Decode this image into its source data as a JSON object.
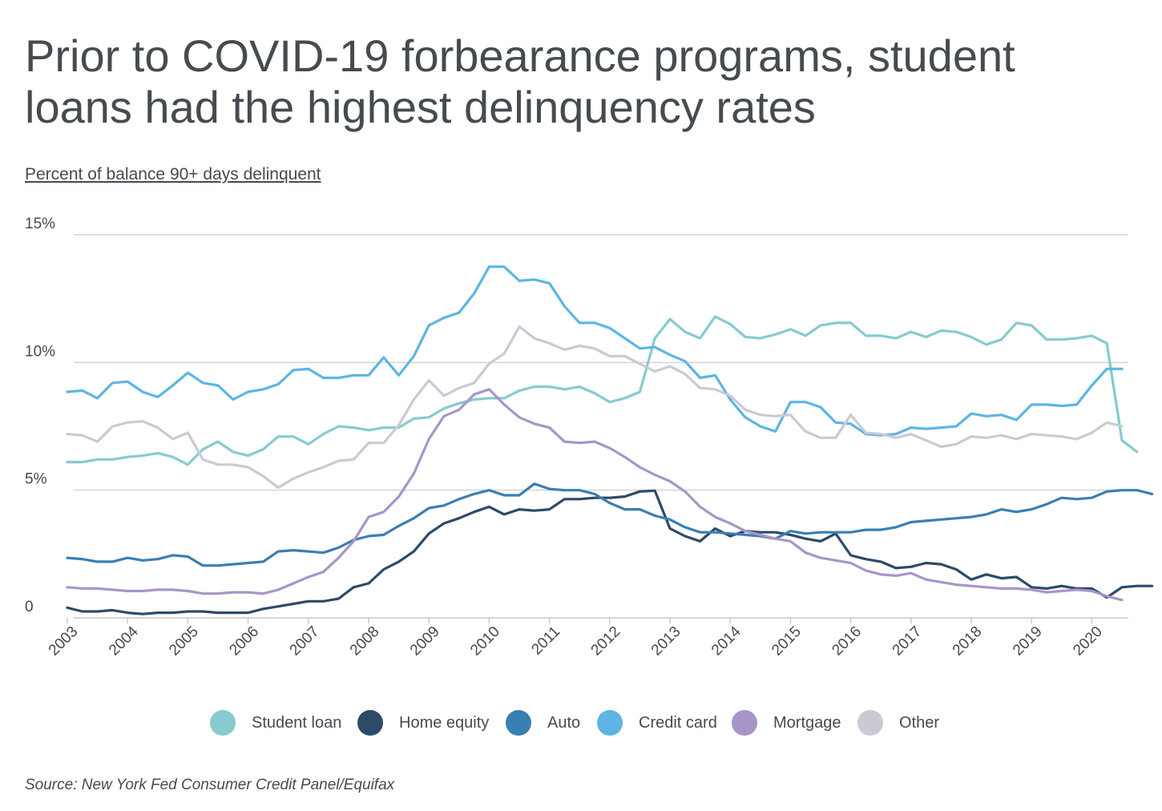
{
  "title": "Prior to COVID-19 forbearance programs, student loans had the highest delinquency rates",
  "subtitle": "Percent of balance 90+ days delinquent",
  "source": "Source: New York Fed Consumer Credit Panel/Equifax",
  "chart_data": {
    "type": "line",
    "ylabel": "Percent of balance 90+ days delinquent",
    "ylim": [
      0,
      15
    ],
    "y_ticks": [
      0,
      5,
      10,
      15
    ],
    "y_tick_labels": [
      "0",
      "5%",
      "10%",
      "15%"
    ],
    "x_range": [
      2003.0,
      2020.5
    ],
    "x_ticks": [
      2003,
      2004,
      2005,
      2006,
      2007,
      2008,
      2009,
      2010,
      2011,
      2012,
      2013,
      2014,
      2015,
      2016,
      2017,
      2018,
      2019,
      2020
    ],
    "x_tick_labels": [
      "2003",
      "2004",
      "2005",
      "2006",
      "2007",
      "2008",
      "2009",
      "2010",
      "2011",
      "2012",
      "2013",
      "2014",
      "2015",
      "2016",
      "2017",
      "2018",
      "2019",
      "2020"
    ],
    "x_step_years": 0.25,
    "grid": "horizontal",
    "legend_position": "bottom",
    "series": [
      {
        "name": "Student loan",
        "color": "#86cbcf",
        "values": [
          6.1,
          6.1,
          6.2,
          6.2,
          6.3,
          6.35,
          6.45,
          6.3,
          6.0,
          6.6,
          6.9,
          6.5,
          6.35,
          6.6,
          7.1,
          7.1,
          6.8,
          7.2,
          7.5,
          7.45,
          7.35,
          7.45,
          7.45,
          7.8,
          7.85,
          8.2,
          8.4,
          8.55,
          8.6,
          8.6,
          8.9,
          9.05,
          9.05,
          8.95,
          9.05,
          8.8,
          8.45,
          8.6,
          8.85,
          10.95,
          11.7,
          11.2,
          10.95,
          11.8,
          11.5,
          11.0,
          10.95,
          11.1,
          11.3,
          11.05,
          11.45,
          11.55,
          11.55,
          11.05,
          11.05,
          10.95,
          11.2,
          11.0,
          11.25,
          11.2,
          11.0,
          10.7,
          10.9,
          11.55,
          11.45,
          10.9,
          10.9,
          10.95,
          11.05,
          10.75,
          6.95,
          6.5
        ]
      },
      {
        "name": "Home equity",
        "color": "#2d4a68",
        "values": [
          0.4,
          0.25,
          0.25,
          0.3,
          0.2,
          0.15,
          0.2,
          0.2,
          0.25,
          0.25,
          0.2,
          0.2,
          0.2,
          0.35,
          0.45,
          0.55,
          0.65,
          0.65,
          0.75,
          1.2,
          1.35,
          1.9,
          2.2,
          2.6,
          3.3,
          3.7,
          3.9,
          4.15,
          4.35,
          4.05,
          4.25,
          4.2,
          4.25,
          4.65,
          4.65,
          4.7,
          4.7,
          4.75,
          4.95,
          4.98,
          3.5,
          3.2,
          3.0,
          3.5,
          3.2,
          3.4,
          3.35,
          3.35,
          3.25,
          3.1,
          3.0,
          3.3,
          2.45,
          2.3,
          2.2,
          1.95,
          2.0,
          2.15,
          2.1,
          1.9,
          1.5,
          1.7,
          1.55,
          1.6,
          1.2,
          1.15,
          1.25,
          1.15,
          1.15,
          0.8,
          1.2,
          1.25,
          1.25
        ]
      },
      {
        "name": "Auto",
        "color": "#3a7fb2",
        "values": [
          2.35,
          2.3,
          2.2,
          2.2,
          2.35,
          2.25,
          2.3,
          2.45,
          2.4,
          2.05,
          2.05,
          2.1,
          2.15,
          2.2,
          2.6,
          2.65,
          2.6,
          2.55,
          2.75,
          3.05,
          3.2,
          3.25,
          3.6,
          3.9,
          4.3,
          4.4,
          4.65,
          4.85,
          5.0,
          4.8,
          4.8,
          5.25,
          5.05,
          5.0,
          5.0,
          4.85,
          4.5,
          4.25,
          4.25,
          4.0,
          3.85,
          3.55,
          3.35,
          3.35,
          3.3,
          3.25,
          3.2,
          3.1,
          3.4,
          3.3,
          3.35,
          3.35,
          3.35,
          3.45,
          3.45,
          3.55,
          3.75,
          3.8,
          3.85,
          3.9,
          3.95,
          4.05,
          4.25,
          4.15,
          4.25,
          4.45,
          4.7,
          4.65,
          4.7,
          4.95,
          5.0,
          5.0,
          4.85
        ]
      },
      {
        "name": "Credit card",
        "color": "#5db5e4",
        "values": [
          8.85,
          8.9,
          8.6,
          9.2,
          9.25,
          8.85,
          8.65,
          9.1,
          9.6,
          9.2,
          9.1,
          8.55,
          8.85,
          8.95,
          9.15,
          9.7,
          9.75,
          9.4,
          9.4,
          9.5,
          9.5,
          10.2,
          9.5,
          10.25,
          11.45,
          11.75,
          11.95,
          12.7,
          13.75,
          13.75,
          13.2,
          13.25,
          13.1,
          12.2,
          11.55,
          11.55,
          11.35,
          10.95,
          10.55,
          10.6,
          10.3,
          10.05,
          9.4,
          9.5,
          8.55,
          7.85,
          7.5,
          7.3,
          8.45,
          8.45,
          8.25,
          7.65,
          7.6,
          7.2,
          7.15,
          7.2,
          7.45,
          7.4,
          7.45,
          7.5,
          8.0,
          7.9,
          7.95,
          7.75,
          8.35,
          8.35,
          8.3,
          8.35,
          9.1,
          9.75,
          9.75
        ]
      },
      {
        "name": "Mortgage",
        "color": "#a895c8",
        "values": [
          1.2,
          1.15,
          1.15,
          1.1,
          1.05,
          1.05,
          1.1,
          1.1,
          1.05,
          0.95,
          0.95,
          1.0,
          1.0,
          0.95,
          1.1,
          1.35,
          1.6,
          1.8,
          2.35,
          3.0,
          3.95,
          4.15,
          4.75,
          5.65,
          7.0,
          7.9,
          8.15,
          8.75,
          8.95,
          8.35,
          7.85,
          7.6,
          7.45,
          6.9,
          6.85,
          6.9,
          6.65,
          6.3,
          5.9,
          5.6,
          5.35,
          4.95,
          4.35,
          3.95,
          3.7,
          3.4,
          3.25,
          3.1,
          3.0,
          2.55,
          2.35,
          2.25,
          2.15,
          1.85,
          1.7,
          1.65,
          1.75,
          1.5,
          1.4,
          1.3,
          1.25,
          1.2,
          1.15,
          1.15,
          1.1,
          1.0,
          1.05,
          1.1,
          1.05,
          0.85,
          0.7
        ]
      },
      {
        "name": "Other",
        "color": "#cbc9d6",
        "values": [
          7.2,
          7.15,
          6.9,
          7.5,
          7.65,
          7.7,
          7.45,
          7.0,
          7.25,
          6.2,
          6.0,
          6.0,
          5.9,
          5.55,
          5.1,
          5.45,
          5.7,
          5.9,
          6.15,
          6.2,
          6.85,
          6.85,
          7.55,
          8.55,
          9.3,
          8.7,
          9.0,
          9.2,
          9.95,
          10.35,
          11.4,
          10.95,
          10.75,
          10.5,
          10.65,
          10.55,
          10.25,
          10.25,
          9.95,
          9.65,
          9.85,
          9.55,
          9.0,
          8.95,
          8.7,
          8.15,
          7.95,
          7.9,
          7.95,
          7.3,
          7.05,
          7.05,
          7.95,
          7.25,
          7.2,
          7.05,
          7.2,
          6.95,
          6.7,
          6.8,
          7.1,
          7.05,
          7.15,
          7.0,
          7.2,
          7.15,
          7.1,
          7.0,
          7.25,
          7.65,
          7.5
        ]
      }
    ]
  }
}
